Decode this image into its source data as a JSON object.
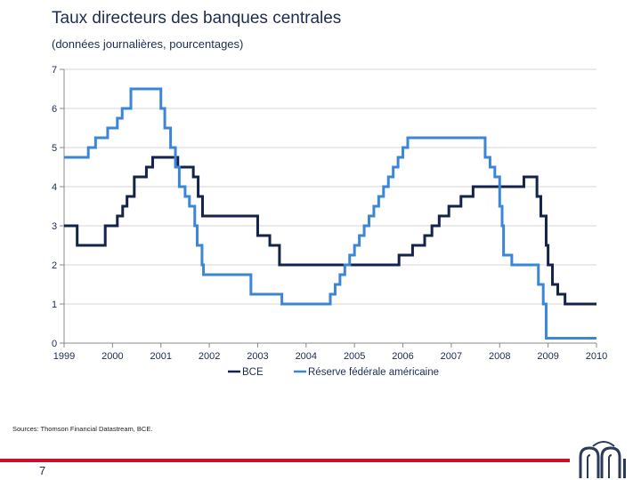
{
  "slide": {
    "title": "Taux directeurs des banques centrales",
    "subtitle": "(données journalières, pourcentages)",
    "source": "Sources: Thomson Financial Datastream, BCE.",
    "page_number": "7"
  },
  "colors": {
    "accent": "#c8102e",
    "ecb": "#14234a",
    "fed": "#3b86d6"
  },
  "chart_data": {
    "type": "line",
    "title": "Taux directeurs des banques centrales",
    "subtitle": "(données journalières, pourcentages)",
    "xlabel": "",
    "ylabel": "",
    "xlim": [
      1999.0,
      2010.0
    ],
    "ylim": [
      0,
      7
    ],
    "yticks": [
      0,
      1,
      2,
      3,
      4,
      5,
      6,
      7
    ],
    "xticks": [
      "1999",
      "2000",
      "2001",
      "2002",
      "2003",
      "2004",
      "2005",
      "2006",
      "2007",
      "2008",
      "2009",
      "2010"
    ],
    "grid": true,
    "legend_position": "bottom-center",
    "series": [
      {
        "name": "BCE",
        "step": true,
        "x": [
          1999.0,
          1999.27,
          1999.85,
          2000.1,
          2000.21,
          2000.3,
          2000.45,
          2000.7,
          2000.83,
          2001.35,
          2001.67,
          2001.77,
          2001.86,
          2003.0,
          2003.25,
          2003.45,
          2005.92,
          2006.2,
          2006.45,
          2006.6,
          2006.75,
          2006.95,
          2007.2,
          2007.45,
          2008.5,
          2008.77,
          2008.85,
          2008.96,
          2009.0,
          2009.09,
          2009.2,
          2009.35,
          2010.0
        ],
        "values": [
          3.0,
          2.5,
          3.0,
          3.25,
          3.5,
          3.75,
          4.25,
          4.5,
          4.75,
          4.5,
          4.25,
          3.75,
          3.25,
          2.75,
          2.5,
          2.0,
          2.25,
          2.5,
          2.75,
          3.0,
          3.25,
          3.5,
          3.75,
          4.0,
          4.25,
          3.75,
          3.25,
          2.5,
          2.0,
          1.5,
          1.25,
          1.0,
          1.0
        ]
      },
      {
        "name": "Réserve fédérale américaine",
        "step": true,
        "x": [
          1999.0,
          1999.5,
          1999.65,
          1999.9,
          2000.1,
          2000.2,
          2000.38,
          2001.0,
          2001.08,
          2001.2,
          2001.3,
          2001.38,
          2001.5,
          2001.59,
          2001.7,
          2001.75,
          2001.85,
          2001.88,
          2001.94,
          2002.86,
          2003.5,
          2004.5,
          2004.6,
          2004.7,
          2004.8,
          2004.9,
          2005.0,
          2005.1,
          2005.2,
          2005.3,
          2005.4,
          2005.5,
          2005.6,
          2005.7,
          2005.8,
          2005.9,
          2006.0,
          2006.1,
          2006.2,
          2006.3,
          2006.45,
          2007.7,
          2007.8,
          2007.9,
          2008.0,
          2008.05,
          2008.08,
          2008.25,
          2008.8,
          2008.9,
          2008.96,
          2010.0
        ],
        "values": [
          4.75,
          5.0,
          5.25,
          5.5,
          5.75,
          6.0,
          6.5,
          6.0,
          5.5,
          5.0,
          4.5,
          4.0,
          3.75,
          3.5,
          3.0,
          2.5,
          2.0,
          1.75,
          1.75,
          1.25,
          1.0,
          1.25,
          1.5,
          1.75,
          2.0,
          2.25,
          2.5,
          2.75,
          3.0,
          3.25,
          3.5,
          3.75,
          4.0,
          4.25,
          4.5,
          4.75,
          5.0,
          5.25,
          5.25,
          5.25,
          5.25,
          4.75,
          4.5,
          4.25,
          3.5,
          3.0,
          2.25,
          2.0,
          1.5,
          1.0,
          0.125,
          0.125
        ]
      }
    ]
  }
}
